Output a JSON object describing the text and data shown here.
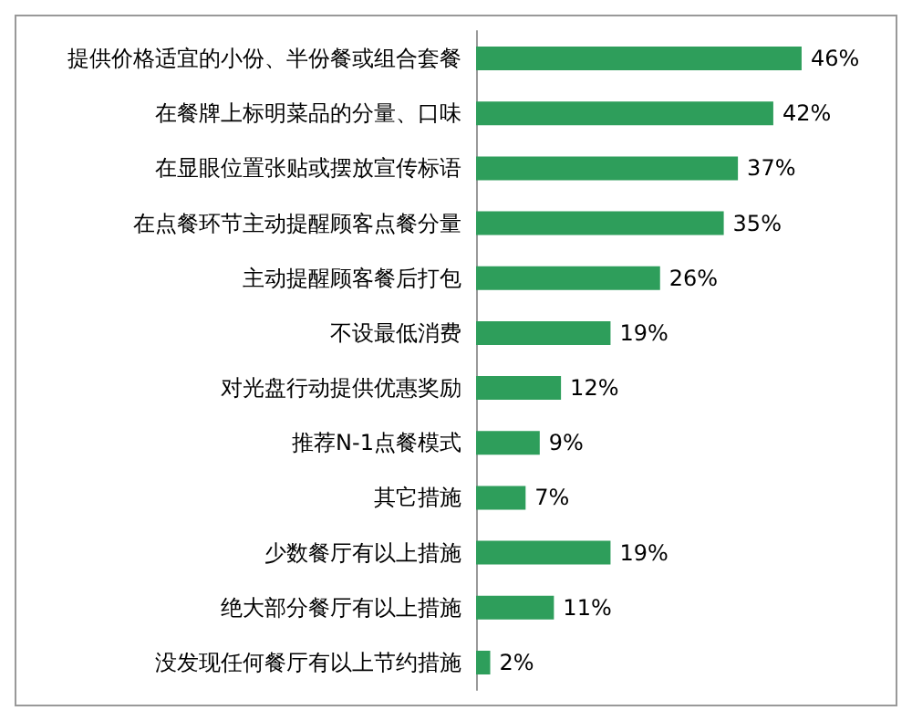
{
  "chart_data": {
    "type": "bar",
    "orientation": "horizontal",
    "categories": [
      "提供价格适宜的小份、半份餐或组合套餐",
      "在餐牌上标明菜品的分量、口味",
      "在显眼位置张贴或摆放宣传标语",
      "在点餐环节主动提醒顾客点餐分量",
      "主动提醒顾客餐后打包",
      "不设最低消费",
      "对光盘行动提供优惠奖励",
      "推荐N-1点餐模式",
      "其它措施",
      "少数餐厅有以上措施",
      "绝大部分餐厅有以上措施",
      "没发现任何餐厅有以上节约措施"
    ],
    "values": [
      46,
      42,
      37,
      35,
      26,
      19,
      12,
      9,
      7,
      19,
      11,
      2
    ],
    "value_labels": [
      "46%",
      "42%",
      "37%",
      "35%",
      "26%",
      "19%",
      "12%",
      "9%",
      "7%",
      "19%",
      "11%",
      "2%"
    ],
    "color": "#2e9e5b"
  }
}
